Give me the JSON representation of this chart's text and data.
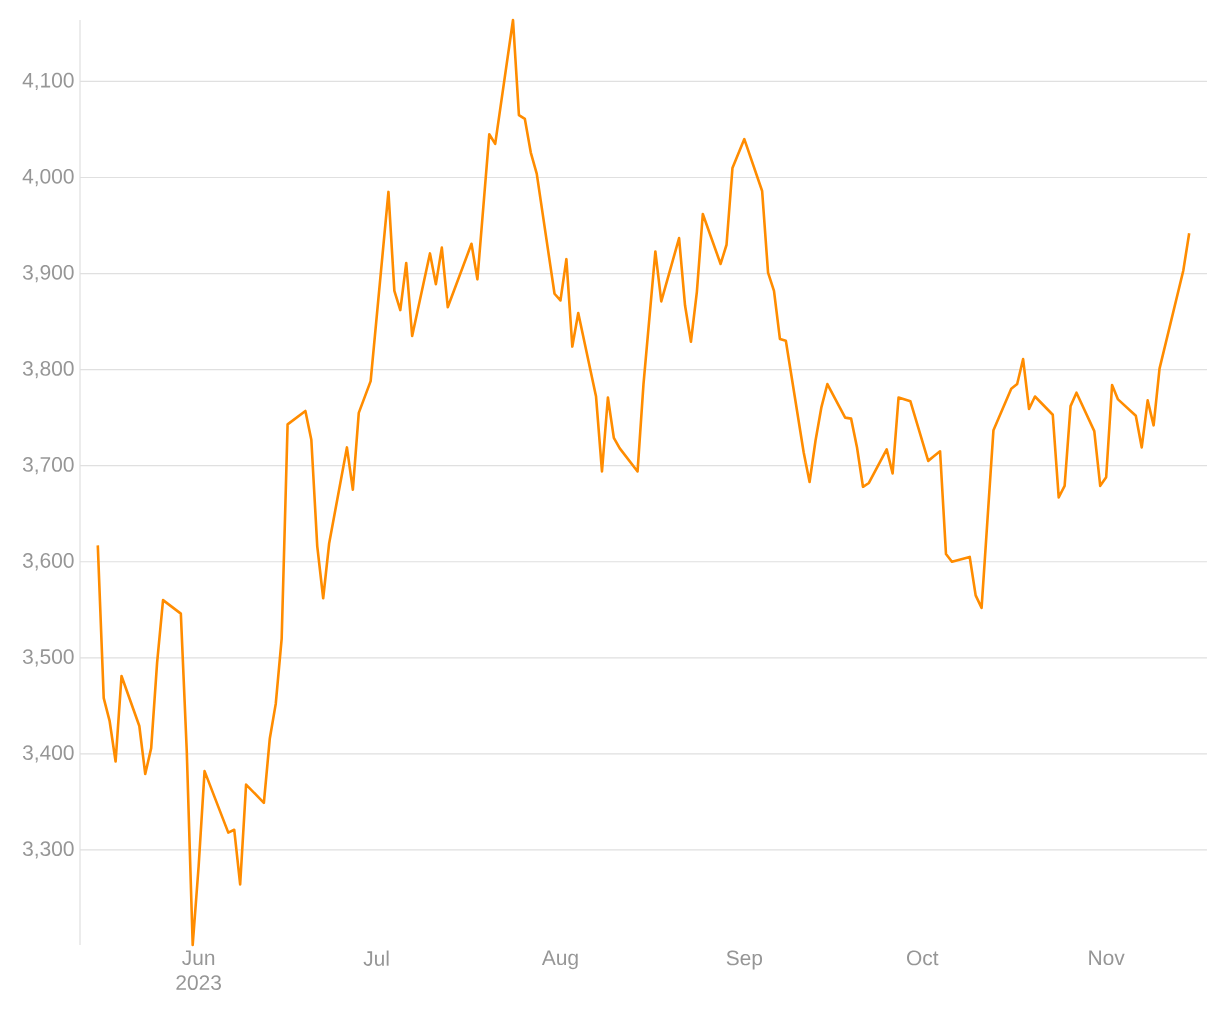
{
  "chart_data": {
    "type": "line",
    "x": [
      "2023-05-15",
      "2023-05-16",
      "2023-05-17",
      "2023-05-18",
      "2023-05-19",
      "2023-05-22",
      "2023-05-23",
      "2023-05-24",
      "2023-05-25",
      "2023-05-26",
      "2023-05-29",
      "2023-05-30",
      "2023-05-31",
      "2023-06-01",
      "2023-06-02",
      "2023-06-06",
      "2023-06-07",
      "2023-06-08",
      "2023-06-09",
      "2023-06-12",
      "2023-06-13",
      "2023-06-14",
      "2023-06-15",
      "2023-06-16",
      "2023-06-19",
      "2023-06-20",
      "2023-06-21",
      "2023-06-22",
      "2023-06-23",
      "2023-06-26",
      "2023-06-27",
      "2023-06-28",
      "2023-06-30",
      "2023-07-03",
      "2023-07-04",
      "2023-07-05",
      "2023-07-06",
      "2023-07-07",
      "2023-07-10",
      "2023-07-11",
      "2023-07-12",
      "2023-07-13",
      "2023-07-17",
      "2023-07-18",
      "2023-07-20",
      "2023-07-21",
      "2023-07-24",
      "2023-07-25",
      "2023-07-26",
      "2023-07-27",
      "2023-07-28",
      "2023-07-31",
      "2023-08-01",
      "2023-08-02",
      "2023-08-03",
      "2023-08-04",
      "2023-08-07",
      "2023-08-08",
      "2023-08-09",
      "2023-08-10",
      "2023-08-11",
      "2023-08-14",
      "2023-08-15",
      "2023-08-17",
      "2023-08-18",
      "2023-08-21",
      "2023-08-22",
      "2023-08-23",
      "2023-08-24",
      "2023-08-25",
      "2023-08-28",
      "2023-08-29",
      "2023-08-30",
      "2023-09-01",
      "2023-09-04",
      "2023-09-05",
      "2023-09-06",
      "2023-09-07",
      "2023-09-08",
      "2023-09-11",
      "2023-09-12",
      "2023-09-13",
      "2023-09-14",
      "2023-09-15",
      "2023-09-18",
      "2023-09-19",
      "2023-09-20",
      "2023-09-21",
      "2023-09-22",
      "2023-09-25",
      "2023-09-26",
      "2023-09-27",
      "2023-09-29",
      "2023-10-02",
      "2023-10-03",
      "2023-10-04",
      "2023-10-05",
      "2023-10-06",
      "2023-10-09",
      "2023-10-10",
      "2023-10-11",
      "2023-10-13",
      "2023-10-16",
      "2023-10-17",
      "2023-10-18",
      "2023-10-19",
      "2023-10-20",
      "2023-10-23",
      "2023-10-24",
      "2023-10-25",
      "2023-10-26",
      "2023-10-27",
      "2023-10-30",
      "2023-10-31",
      "2023-11-01",
      "2023-11-02",
      "2023-11-03",
      "2023-11-06",
      "2023-11-07",
      "2023-11-08",
      "2023-11-09",
      "2023-11-10",
      "2023-11-14",
      "2023-11-15"
    ],
    "series": [
      {
        "color": "#ff8c00",
        "values": [
          3617,
          3458,
          3434,
          3392,
          3481,
          3429,
          3379,
          3406,
          3495,
          3560,
          3546,
          3403,
          3201,
          3283,
          3382,
          3318,
          3321,
          3264,
          3368,
          3349,
          3416,
          3452,
          3520,
          3743,
          3757,
          3727,
          3616,
          3562,
          3619,
          3719,
          3675,
          3755,
          3788,
          3985,
          3882,
          3862,
          3911,
          3835,
          3921,
          3889,
          3927,
          3865,
          3931,
          3894,
          4045,
          4035,
          4164,
          4065,
          4061,
          4026,
          4004,
          3879,
          3872,
          3915,
          3824,
          3859,
          3772,
          3694,
          3771,
          3729,
          3718,
          3694,
          3785,
          3923,
          3871,
          3937,
          3867,
          3829,
          3881,
          3962,
          3910,
          3930,
          4010,
          4040,
          3986,
          3901,
          3882,
          3832,
          3830,
          3714,
          3683,
          3726,
          3761,
          3785,
          3750,
          3749,
          3719,
          3678,
          3682,
          3717,
          3692,
          3771,
          3767,
          3705,
          3710,
          3715,
          3608,
          3600,
          3605,
          3565,
          3552,
          3737,
          3780,
          3785,
          3811,
          3759,
          3772,
          3753,
          3667,
          3679,
          3762,
          3776,
          3736,
          3679,
          3688,
          3784,
          3769,
          3752,
          3719,
          3768,
          3742,
          3801,
          3903,
          3942
        ]
      }
    ],
    "xlim": [
      "2023-05-12",
      "2023-11-18"
    ],
    "ylim": [
      3201,
      4164
    ],
    "xticks": [
      {
        "value": "2023-06-01",
        "label": "Jun 2023"
      },
      {
        "value": "2023-07-01",
        "label": "Jul"
      },
      {
        "value": "2023-08-01",
        "label": "Aug"
      },
      {
        "value": "2023-09-01",
        "label": "Sep"
      },
      {
        "value": "2023-10-01",
        "label": "Oct"
      },
      {
        "value": "2023-11-01",
        "label": "Nov"
      }
    ],
    "yticks": [
      {
        "value": 3300,
        "label": "3,300"
      },
      {
        "value": 3400,
        "label": "3,400"
      },
      {
        "value": 3500,
        "label": "3,500"
      },
      {
        "value": 3600,
        "label": "3,600"
      },
      {
        "value": 3700,
        "label": "3,700"
      },
      {
        "value": 3800,
        "label": "3,800"
      },
      {
        "value": 3900,
        "label": "3,900"
      },
      {
        "value": 4000,
        "label": "4,000"
      },
      {
        "value": 4100,
        "label": "4,100"
      }
    ],
    "grid": "y",
    "marker": "none",
    "line_style": "solid"
  }
}
